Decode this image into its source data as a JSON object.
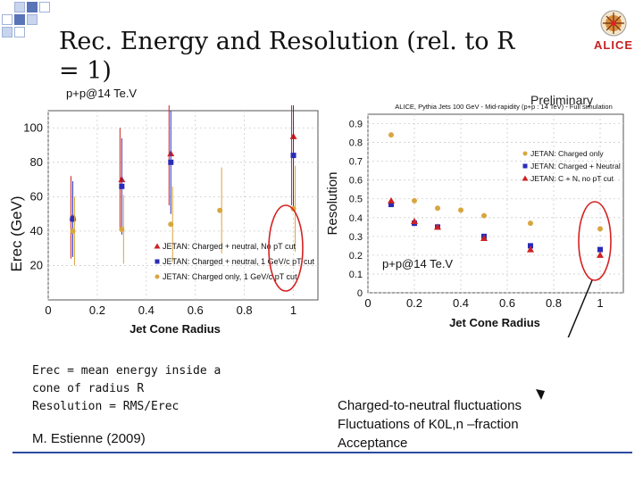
{
  "slide": {
    "title": "Rec. Energy and Resolution (rel. to R = 1)",
    "logo_text": "ALICE",
    "collision_left": "p+p@14 Te.V",
    "collision_right": "p+p@14 Te.V",
    "preliminary": "Preliminary",
    "notes": {
      "line1": "Erec = mean energy inside a",
      "line2": "cone of radius R",
      "line3": "Resolution = RMS/Erec"
    },
    "author": "M. Estienne (2009)",
    "explanation": {
      "line1": "Charged-to-neutral fluctuations",
      "line2": "Fluctuations of K0L,n –fraction",
      "line3": "Acceptance"
    }
  },
  "chart_data": [
    {
      "type": "scatter",
      "title": "",
      "xlabel": "Jet Cone Radius",
      "ylabel": "Erec (GeV)",
      "xlim": [
        0,
        1.1
      ],
      "ylim": [
        0,
        110
      ],
      "x_ticks": [
        "0",
        "0.2",
        "0.4",
        "0.6",
        "0.8",
        "1"
      ],
      "y_ticks": [
        "20",
        "40",
        "60",
        "80",
        "100"
      ],
      "legend": [
        "JETAN: Charged + neutral, No pT cut",
        "JETAN: Charged + neutral, 1 GeV/c pT cut",
        "JETAN: Charged only, 1 GeV/c pT cut"
      ],
      "series": [
        {
          "name": "Charged + neutral, No pT cut",
          "marker": "triangle",
          "color": "#cc2222",
          "x": [
            0.1,
            0.3,
            0.5,
            1.0
          ],
          "y": [
            48,
            70,
            85,
            95
          ],
          "err": [
            24,
            30,
            30,
            40
          ]
        },
        {
          "name": "Charged + neutral, 1 GeV/c pT cut",
          "marker": "square",
          "color": "#2b2bb8",
          "x": [
            0.1,
            0.3,
            0.5,
            1.0
          ],
          "y": [
            47,
            66,
            80,
            84
          ],
          "err": [
            22,
            28,
            30,
            30
          ]
        },
        {
          "name": "Charged only, 1 GeV/c pT cut",
          "marker": "circle",
          "color": "#d8a640",
          "x": [
            0.1,
            0.3,
            0.5,
            0.7,
            1.0
          ],
          "y": [
            40,
            41,
            44,
            52,
            53
          ],
          "err": [
            20,
            20,
            22,
            25,
            25
          ]
        }
      ]
    },
    {
      "type": "scatter",
      "title": "ALICE, Pythia Jets 100 GeV - Mid-rapidity (p+p : 14 TeV) - Full simulation",
      "xlabel": "Jet Cone Radius",
      "ylabel": "Resolution",
      "xlim": [
        0,
        1.1
      ],
      "ylim": [
        0,
        0.95
      ],
      "x_ticks": [
        "0",
        "0.2",
        "0.4",
        "0.6",
        "0.8",
        "1"
      ],
      "y_ticks": [
        "0",
        "0.1",
        "0.2",
        "0.3",
        "0.4",
        "0.5",
        "0.6",
        "0.7",
        "0.8",
        "0.9"
      ],
      "legend": [
        "JETAN: Charged only",
        "JETAN: Charged + Neutral",
        "JETAN: C + N, no pT cut"
      ],
      "series": [
        {
          "name": "Charged only",
          "marker": "circle",
          "color": "#d8a640",
          "x": [
            0.1,
            0.2,
            0.3,
            0.4,
            0.5,
            0.7,
            1.0
          ],
          "y": [
            0.84,
            0.49,
            0.45,
            0.44,
            0.41,
            0.37,
            0.34
          ]
        },
        {
          "name": "Charged + Neutral",
          "marker": "square",
          "color": "#2b2bb8",
          "x": [
            0.1,
            0.2,
            0.3,
            0.5,
            0.7,
            1.0
          ],
          "y": [
            0.47,
            0.37,
            0.35,
            0.3,
            0.25,
            0.23
          ]
        },
        {
          "name": "C + N, no pT cut",
          "marker": "triangle",
          "color": "#cc2222",
          "x": [
            0.1,
            0.2,
            0.3,
            0.5,
            0.7,
            1.0
          ],
          "y": [
            0.49,
            0.38,
            0.35,
            0.29,
            0.23,
            0.2
          ]
        }
      ]
    }
  ]
}
